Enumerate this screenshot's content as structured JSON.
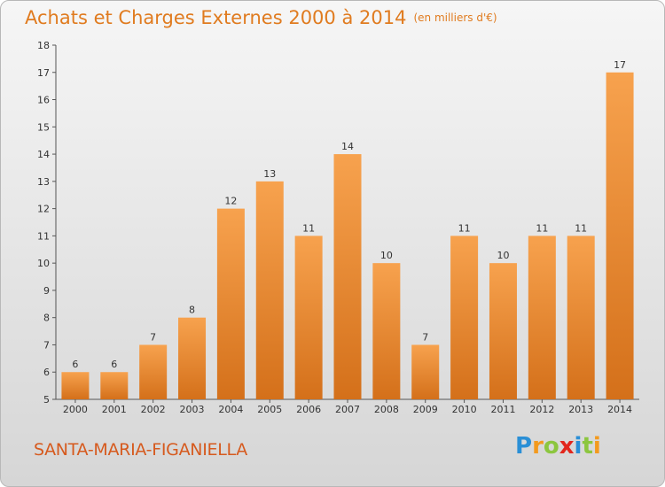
{
  "header": {
    "title": "Achats et Charges Externes 2000 à 2014",
    "unit": "(en milliers d'€)"
  },
  "footer": {
    "commune": "SANTA-MARIA-FIGANIELLA"
  },
  "logo": {
    "text": "Proxiti",
    "letters": [
      {
        "ch": "P",
        "color": "#2a8fd6"
      },
      {
        "ch": "r",
        "color": "#f39a1e"
      },
      {
        "ch": "o",
        "color": "#8cc63f"
      },
      {
        "ch": "x",
        "color": "#e2261c"
      },
      {
        "ch": "i",
        "color": "#2a8fd6"
      },
      {
        "ch": "t",
        "color": "#8cc63f"
      },
      {
        "ch": "i",
        "color": "#f39a1e"
      }
    ]
  },
  "colors": {
    "bar_light": "#f7a24e",
    "bar_dark": "#d4701a",
    "title": "#e07b1f"
  },
  "chart_data": {
    "type": "bar",
    "title": "Achats et Charges Externes 2000 à 2014",
    "subtitle": "(en milliers d'€)",
    "xlabel": "",
    "ylabel": "",
    "categories": [
      "2000",
      "2001",
      "2002",
      "2003",
      "2004",
      "2005",
      "2006",
      "2007",
      "2008",
      "2009",
      "2010",
      "2011",
      "2012",
      "2013",
      "2014"
    ],
    "values": [
      6,
      6,
      7,
      8,
      12,
      13,
      11,
      14,
      10,
      7,
      11,
      10,
      11,
      11,
      17
    ],
    "ylim": [
      5,
      18
    ],
    "yticks": [
      5,
      6,
      7,
      8,
      9,
      10,
      11,
      12,
      13,
      14,
      15,
      16,
      17,
      18
    ],
    "grid": false,
    "data_labels": true
  }
}
